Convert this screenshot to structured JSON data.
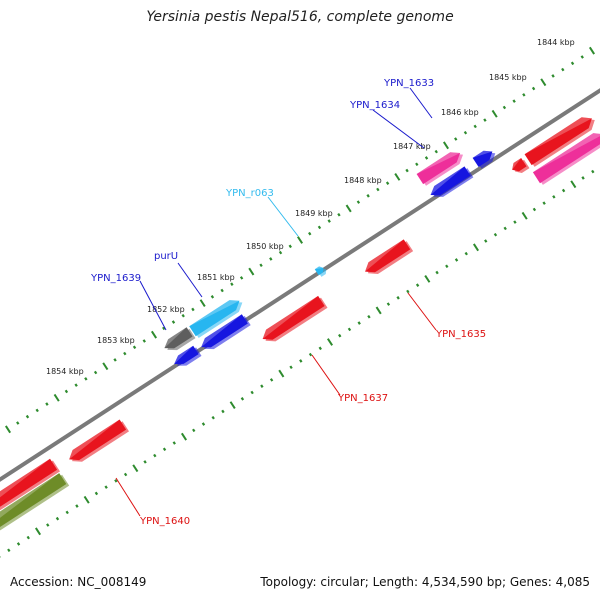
{
  "title": "Yersinia pestis Nepal516, complete genome",
  "footer": {
    "accession": "Accession: NC_008149",
    "summary": "Topology: circular; Length: 4,534,590 bp; Genes: 4,085"
  },
  "colors": {
    "backbone": "#7a7a7a",
    "ticks": "#2e8b2e",
    "red": "#e8141e",
    "blue": "#1616e0",
    "cyan": "#27b6f0",
    "magenta": "#ee2f9a",
    "gray": "#5e5e5e",
    "olive": "#6e8c28",
    "label_blue": "#1a1acc",
    "label_red": "#dd1111",
    "label_cyan": "#33bbee"
  },
  "scale": {
    "kbp_labels": [
      "1844 kbp",
      "1845 kbp",
      "1846 kbp",
      "1847 kbp",
      "1848 kbp",
      "1849 kbp",
      "1850 kbp",
      "1851 kbp",
      "1852 kbp",
      "1853 kbp",
      "1854 kbp"
    ]
  },
  "genes": [
    {
      "label": "YPN_1633",
      "color": "magenta",
      "label_color": "label_blue"
    },
    {
      "label": "YPN_1634",
      "color": "blue",
      "label_color": "label_blue"
    },
    {
      "label": "YPN_r063",
      "color": "cyan",
      "label_color": "label_cyan"
    },
    {
      "label": "purU",
      "color": "cyan",
      "label_color": "label_blue"
    },
    {
      "label": "YPN_1639",
      "color": "gray",
      "label_color": "label_blue"
    },
    {
      "label": "YPN_1635",
      "color": "red",
      "label_color": "label_red"
    },
    {
      "label": "YPN_1637",
      "color": "red",
      "label_color": "label_red"
    },
    {
      "label": "YPN_1640",
      "color": "red",
      "label_color": "label_red"
    }
  ]
}
